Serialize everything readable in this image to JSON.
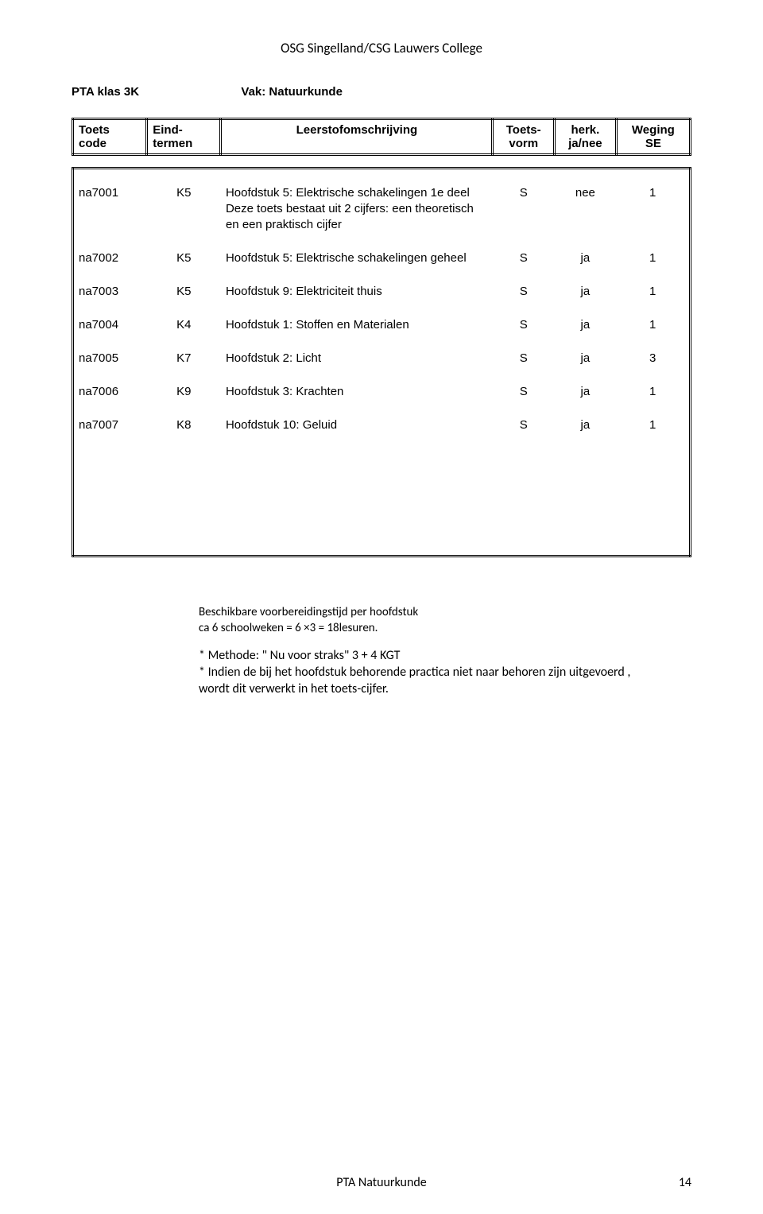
{
  "doc_title": "OSG Singelland/CSG Lauwers College",
  "subheader": {
    "left": "PTA klas   3K",
    "right": "Vak: Natuurkunde"
  },
  "header_row1": {
    "c0": "Toets",
    "c1": "Eind-",
    "c2": "Leerstofomschrijving",
    "c3": "Toets-",
    "c4": "herk.",
    "c5": "Weging"
  },
  "header_row2": {
    "c0": "code",
    "c1": "termen",
    "c2": "",
    "c3": "vorm",
    "c4": "ja/nee",
    "c5": "SE"
  },
  "rows": {
    "r0": {
      "code": "na7001",
      "term": "K5",
      "desc": "Hoofdstuk 5:    Elektrische  schakelingen 1e deel",
      "form": "S",
      "herk": "nee",
      "weg": "1"
    },
    "r0a": {
      "desc": "Deze toets bestaat uit 2 cijfers: een theoretisch"
    },
    "r0b": {
      "desc": "en een praktisch cijfer"
    },
    "r1": {
      "code": "na7002",
      "term": "K5",
      "desc": "Hoofdstuk 5:    Elektrische schakelingen geheel",
      "form": "S",
      "herk": "ja",
      "weg": "1"
    },
    "r2": {
      "code": "na7003",
      "term": "K5",
      "desc": "Hoofdstuk 9:    Elektriciteit thuis",
      "form": "S",
      "herk": "ja",
      "weg": "1"
    },
    "r3": {
      "code": "na7004",
      "term": "K4",
      "desc": "Hoofdstuk 1:    Stoffen en Materialen",
      "form": "S",
      "herk": "ja",
      "weg": "1"
    },
    "r4": {
      "code": "na7005",
      "term": "K7",
      "desc": "Hoofdstuk 2:   Licht",
      "form": "S",
      "herk": "ja",
      "weg": "3"
    },
    "r5": {
      "code": "na7006",
      "term": "K9",
      "desc": "Hoofdstuk 3:    Krachten",
      "form": "S",
      "herk": "ja",
      "weg": "1"
    },
    "r6": {
      "code": "na7007",
      "term": "K8",
      "desc": "Hoofdstuk 10:    Geluid",
      "form": "S",
      "herk": "ja",
      "weg": "1"
    }
  },
  "notes": {
    "n1": "Beschikbare voorbereidingstijd per hoofdstuk",
    "n2": "ca 6 schoolweken = 6 ×3 = 18lesuren.",
    "n3": "* Methode: \" Nu voor straks\" 3 + 4 KGT",
    "n4": "* Indien de bij het hoofdstuk behorende practica niet naar behoren zijn uitgevoerd ,",
    "n5": "  wordt dit verwerkt in het toets-cijfer."
  },
  "footer": {
    "label": "PTA Natuurkunde",
    "page": "14"
  }
}
